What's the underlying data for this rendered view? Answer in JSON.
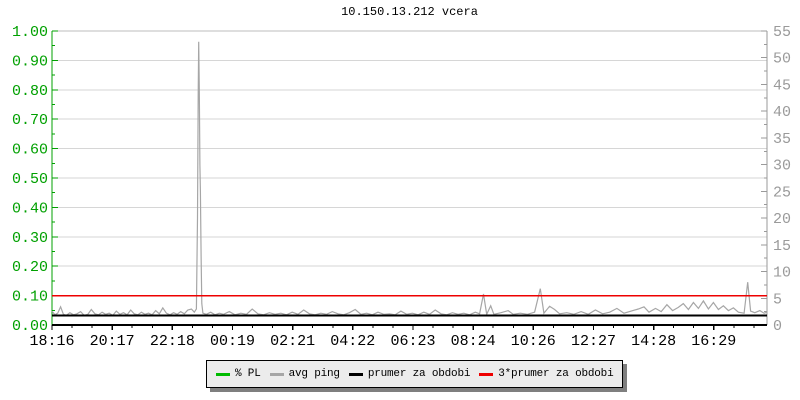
{
  "title": "10.150.13.212 vcera",
  "chart_data": {
    "type": "line",
    "title": "10.150.13.212 vcera",
    "x_axis": {
      "tick_labels": [
        "18:16",
        "20:17",
        "22:18",
        "00:19",
        "02:21",
        "04:22",
        "06:23",
        "08:24",
        "10:26",
        "12:27",
        "14:28",
        "16:29"
      ],
      "tick_interval_min": 121,
      "total_span_min": 1438,
      "label_color": "#000000"
    },
    "left_axis": {
      "tick_labels": [
        "1.00",
        "0.90",
        "0.80",
        "0.70",
        "0.60",
        "0.50",
        "0.40",
        "0.30",
        "0.20",
        "0.10",
        "0.00"
      ],
      "range": [
        0,
        1
      ],
      "color": "#00a000"
    },
    "right_axis": {
      "tick_labels": [
        "55",
        "50",
        "45",
        "40",
        "35",
        "30",
        "25",
        "20",
        "15",
        "10",
        "5",
        "0"
      ],
      "range": [
        0,
        55
      ],
      "color": "#9a9a9a"
    },
    "grid": {
      "horizontal": true,
      "vertical": false,
      "color": "#d6d6d6",
      "top_frame_color": "#bdbdbd"
    },
    "legend_position": "bottom",
    "series": [
      {
        "name": "% PL",
        "color": "#00bb00",
        "style": "flat",
        "axis": "left",
        "value": 0.0
      },
      {
        "name": "avg ping",
        "color": "#a6a6a6",
        "style": "line",
        "axis": "right",
        "points": [
          [
            0.0,
            2.6
          ],
          [
            0.004,
            1.9
          ],
          [
            0.008,
            2.2
          ],
          [
            0.012,
            3.4
          ],
          [
            0.016,
            2.0
          ],
          [
            0.02,
            1.8
          ],
          [
            0.025,
            2.3
          ],
          [
            0.03,
            1.9
          ],
          [
            0.035,
            2.1
          ],
          [
            0.04,
            2.5
          ],
          [
            0.045,
            1.8
          ],
          [
            0.05,
            2.0
          ],
          [
            0.055,
            2.9
          ],
          [
            0.06,
            2.1
          ],
          [
            0.065,
            1.9
          ],
          [
            0.07,
            2.4
          ],
          [
            0.075,
            2.0
          ],
          [
            0.08,
            2.2
          ],
          [
            0.085,
            1.8
          ],
          [
            0.09,
            2.6
          ],
          [
            0.095,
            2.0
          ],
          [
            0.1,
            2.3
          ],
          [
            0.105,
            1.9
          ],
          [
            0.11,
            2.8
          ],
          [
            0.115,
            2.1
          ],
          [
            0.12,
            1.9
          ],
          [
            0.125,
            2.4
          ],
          [
            0.13,
            2.0
          ],
          [
            0.135,
            2.2
          ],
          [
            0.14,
            1.9
          ],
          [
            0.145,
            2.7
          ],
          [
            0.15,
            2.1
          ],
          [
            0.155,
            3.2
          ],
          [
            0.16,
            2.2
          ],
          [
            0.165,
            1.9
          ],
          [
            0.17,
            2.3
          ],
          [
            0.175,
            2.0
          ],
          [
            0.18,
            2.5
          ],
          [
            0.185,
            2.1
          ],
          [
            0.19,
            2.8
          ],
          [
            0.195,
            3.0
          ],
          [
            0.199,
            2.4
          ],
          [
            0.202,
            3.0
          ],
          [
            0.2035,
            20.0
          ],
          [
            0.2045,
            43.0
          ],
          [
            0.2052,
            53.0
          ],
          [
            0.206,
            44.0
          ],
          [
            0.2068,
            30.0
          ],
          [
            0.2075,
            25.0
          ],
          [
            0.2085,
            13.0
          ],
          [
            0.2095,
            4.0
          ],
          [
            0.211,
            2.2
          ],
          [
            0.216,
            2.0
          ],
          [
            0.222,
            2.4
          ],
          [
            0.228,
            1.9
          ],
          [
            0.234,
            2.2
          ],
          [
            0.24,
            2.0
          ],
          [
            0.248,
            2.5
          ],
          [
            0.256,
            1.9
          ],
          [
            0.264,
            2.2
          ],
          [
            0.272,
            2.0
          ],
          [
            0.28,
            3.0
          ],
          [
            0.288,
            2.1
          ],
          [
            0.296,
            1.9
          ],
          [
            0.304,
            2.3
          ],
          [
            0.312,
            2.0
          ],
          [
            0.32,
            2.2
          ],
          [
            0.328,
            1.9
          ],
          [
            0.336,
            2.4
          ],
          [
            0.344,
            2.0
          ],
          [
            0.352,
            2.8
          ],
          [
            0.36,
            2.1
          ],
          [
            0.368,
            1.9
          ],
          [
            0.376,
            2.2
          ],
          [
            0.384,
            2.0
          ],
          [
            0.392,
            2.5
          ],
          [
            0.4,
            2.1
          ],
          [
            0.408,
            1.9
          ],
          [
            0.416,
            2.3
          ],
          [
            0.424,
            2.9
          ],
          [
            0.432,
            2.0
          ],
          [
            0.44,
            2.2
          ],
          [
            0.448,
            1.9
          ],
          [
            0.456,
            2.4
          ],
          [
            0.464,
            2.0
          ],
          [
            0.472,
            2.1
          ],
          [
            0.48,
            1.9
          ],
          [
            0.488,
            2.6
          ],
          [
            0.496,
            2.0
          ],
          [
            0.504,
            2.2
          ],
          [
            0.512,
            1.9
          ],
          [
            0.52,
            2.4
          ],
          [
            0.528,
            2.0
          ],
          [
            0.536,
            2.8
          ],
          [
            0.544,
            2.1
          ],
          [
            0.552,
            1.9
          ],
          [
            0.56,
            2.3
          ],
          [
            0.568,
            2.0
          ],
          [
            0.576,
            2.2
          ],
          [
            0.584,
            1.9
          ],
          [
            0.592,
            2.4
          ],
          [
            0.598,
            2.1
          ],
          [
            0.6035,
            5.8
          ],
          [
            0.608,
            2.0
          ],
          [
            0.6135,
            3.6
          ],
          [
            0.618,
            2.0
          ],
          [
            0.628,
            2.3
          ],
          [
            0.638,
            2.7
          ],
          [
            0.645,
            2.0
          ],
          [
            0.655,
            2.2
          ],
          [
            0.665,
            2.0
          ],
          [
            0.675,
            2.4
          ],
          [
            0.683,
            6.8
          ],
          [
            0.688,
            2.2
          ],
          [
            0.696,
            3.5
          ],
          [
            0.703,
            2.9
          ],
          [
            0.71,
            2.1
          ],
          [
            0.72,
            2.3
          ],
          [
            0.73,
            2.0
          ],
          [
            0.74,
            2.5
          ],
          [
            0.75,
            2.0
          ],
          [
            0.76,
            2.8
          ],
          [
            0.77,
            2.1
          ],
          [
            0.78,
            2.4
          ],
          [
            0.79,
            3.1
          ],
          [
            0.8,
            2.2
          ],
          [
            0.81,
            2.6
          ],
          [
            0.82,
            3.0
          ],
          [
            0.828,
            3.4
          ],
          [
            0.835,
            2.4
          ],
          [
            0.844,
            3.1
          ],
          [
            0.852,
            2.5
          ],
          [
            0.86,
            3.8
          ],
          [
            0.868,
            2.7
          ],
          [
            0.876,
            3.3
          ],
          [
            0.883,
            4.0
          ],
          [
            0.89,
            2.9
          ],
          [
            0.897,
            4.2
          ],
          [
            0.904,
            3.1
          ],
          [
            0.911,
            4.5
          ],
          [
            0.918,
            3.0
          ],
          [
            0.925,
            4.2
          ],
          [
            0.932,
            2.9
          ],
          [
            0.939,
            3.6
          ],
          [
            0.946,
            2.7
          ],
          [
            0.953,
            3.2
          ],
          [
            0.96,
            2.4
          ],
          [
            0.968,
            2.2
          ],
          [
            0.973,
            8.0
          ],
          [
            0.977,
            2.6
          ],
          [
            0.983,
            2.3
          ],
          [
            0.99,
            2.7
          ],
          [
            0.996,
            2.2
          ],
          [
            1.0,
            2.4
          ]
        ]
      },
      {
        "name": "prumer za obdobi",
        "color": "#000000",
        "style": "flat",
        "axis": "right",
        "value": 1.8
      },
      {
        "name": "3*prumer za obdobi",
        "color": "#ee0000",
        "style": "flat",
        "axis": "right",
        "value": 5.5
      }
    ]
  },
  "legend": {
    "items": [
      {
        "label": "% PL",
        "color": "#00bb00"
      },
      {
        "label": "avg ping",
        "color": "#a6a6a6"
      },
      {
        "label": "prumer za obdobi",
        "color": "#000000"
      },
      {
        "label": "3*prumer za obdobi",
        "color": "#ee0000"
      }
    ]
  }
}
